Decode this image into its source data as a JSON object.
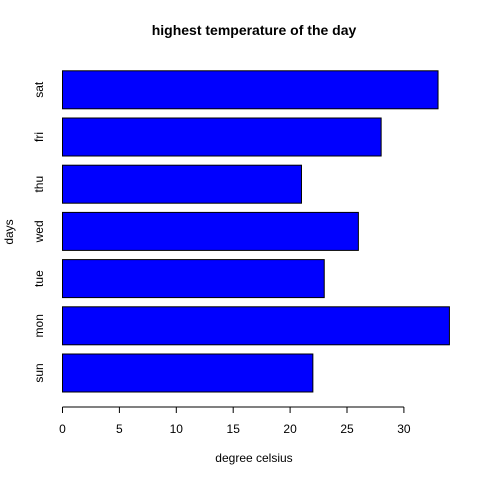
{
  "chart_data": {
    "type": "bar",
    "orientation": "horizontal",
    "title": "highest temperature of the day",
    "xlabel": "degree celsius",
    "ylabel": "days",
    "categories": [
      "sun",
      "mon",
      "tue",
      "wed",
      "thu",
      "fri",
      "sat"
    ],
    "values": [
      22,
      34,
      23,
      26,
      21,
      28,
      33
    ],
    "xlim": [
      0,
      34
    ],
    "xticks": [
      "0",
      "5",
      "10",
      "15",
      "20",
      "25",
      "30"
    ],
    "bar_color": "#0000ff",
    "bar_edge_color": "#000000",
    "grid": false
  }
}
